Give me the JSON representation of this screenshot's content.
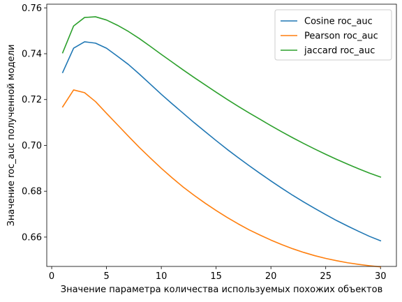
{
  "chart_data": {
    "type": "line",
    "title": "",
    "xlabel": "Значение параметра количества используемых похожих объектов",
    "ylabel": "Значение roc_auc полученной модели",
    "xlim": [
      -0.45,
      31.45
    ],
    "ylim": [
      0.6472,
      0.7616
    ],
    "xticks": [
      0,
      5,
      10,
      15,
      20,
      25,
      30
    ],
    "xtick_labels": [
      "0",
      "5",
      "10",
      "15",
      "20",
      "25",
      "30"
    ],
    "yticks": [
      0.66,
      0.68,
      0.7,
      0.72,
      0.74,
      0.76
    ],
    "ytick_labels": [
      "0.66",
      "0.68",
      "0.70",
      "0.72",
      "0.74",
      "0.76"
    ],
    "grid": false,
    "legend_position": "top-right",
    "x": [
      1,
      2,
      3,
      4,
      5,
      6,
      7,
      8,
      9,
      10,
      11,
      12,
      13,
      14,
      15,
      16,
      17,
      18,
      19,
      20,
      21,
      22,
      23,
      24,
      25,
      26,
      27,
      28,
      29,
      30
    ],
    "series": [
      {
        "name": "Cosine roc_auc",
        "color": "#1f77b4",
        "values": [
          0.7318,
          0.7424,
          0.7452,
          0.7446,
          0.7424,
          0.7389,
          0.7353,
          0.7311,
          0.7267,
          0.7223,
          0.7181,
          0.714,
          0.7099,
          0.706,
          0.7021,
          0.6983,
          0.6947,
          0.6912,
          0.6878,
          0.6845,
          0.6813,
          0.6782,
          0.6753,
          0.6725,
          0.6698,
          0.6672,
          0.6648,
          0.6625,
          0.6603,
          0.6584
        ]
      },
      {
        "name": "Pearson roc_auc",
        "color": "#ff7f0e",
        "values": [
          0.7168,
          0.7242,
          0.723,
          0.7191,
          0.714,
          0.709,
          0.704,
          0.6991,
          0.6945,
          0.69,
          0.6858,
          0.6818,
          0.6782,
          0.6748,
          0.6716,
          0.6686,
          0.6658,
          0.6632,
          0.6609,
          0.6587,
          0.6567,
          0.6549,
          0.6533,
          0.6519,
          0.6507,
          0.6497,
          0.6488,
          0.6481,
          0.6475,
          0.647
        ]
      },
      {
        "name": "jaccard roc_auc",
        "color": "#2ca02c",
        "values": [
          0.7404,
          0.7521,
          0.7558,
          0.7561,
          0.7547,
          0.7524,
          0.7497,
          0.7466,
          0.7432,
          0.7397,
          0.7363,
          0.7329,
          0.7296,
          0.7264,
          0.7232,
          0.7201,
          0.7171,
          0.7142,
          0.7114,
          0.7086,
          0.7059,
          0.7033,
          0.7008,
          0.6984,
          0.6961,
          0.6939,
          0.6918,
          0.6898,
          0.6879,
          0.6862
        ]
      }
    ]
  }
}
